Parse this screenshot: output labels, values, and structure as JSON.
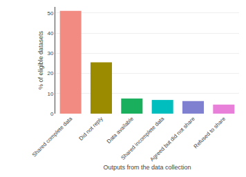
{
  "chart_data": {
    "type": "bar",
    "categories": [
      "Shared complete data",
      "Did not reply",
      "Data available",
      "Shared incomplete data",
      "Agreed but did not share",
      "Refused to share"
    ],
    "values": [
      51,
      25.5,
      7.5,
      6.8,
      6.2,
      4.5
    ],
    "colors": [
      "#F28B82",
      "#9B8B00",
      "#1AAF5D",
      "#00BEBE",
      "#8080D0",
      "#E87FD8"
    ],
    "xlabel": "Outputs from the data collection",
    "ylabel": "% of eligible datasets",
    "ylim": [
      0,
      53
    ],
    "yticks": [
      0,
      10,
      20,
      30,
      40,
      50
    ],
    "grid": true
  }
}
